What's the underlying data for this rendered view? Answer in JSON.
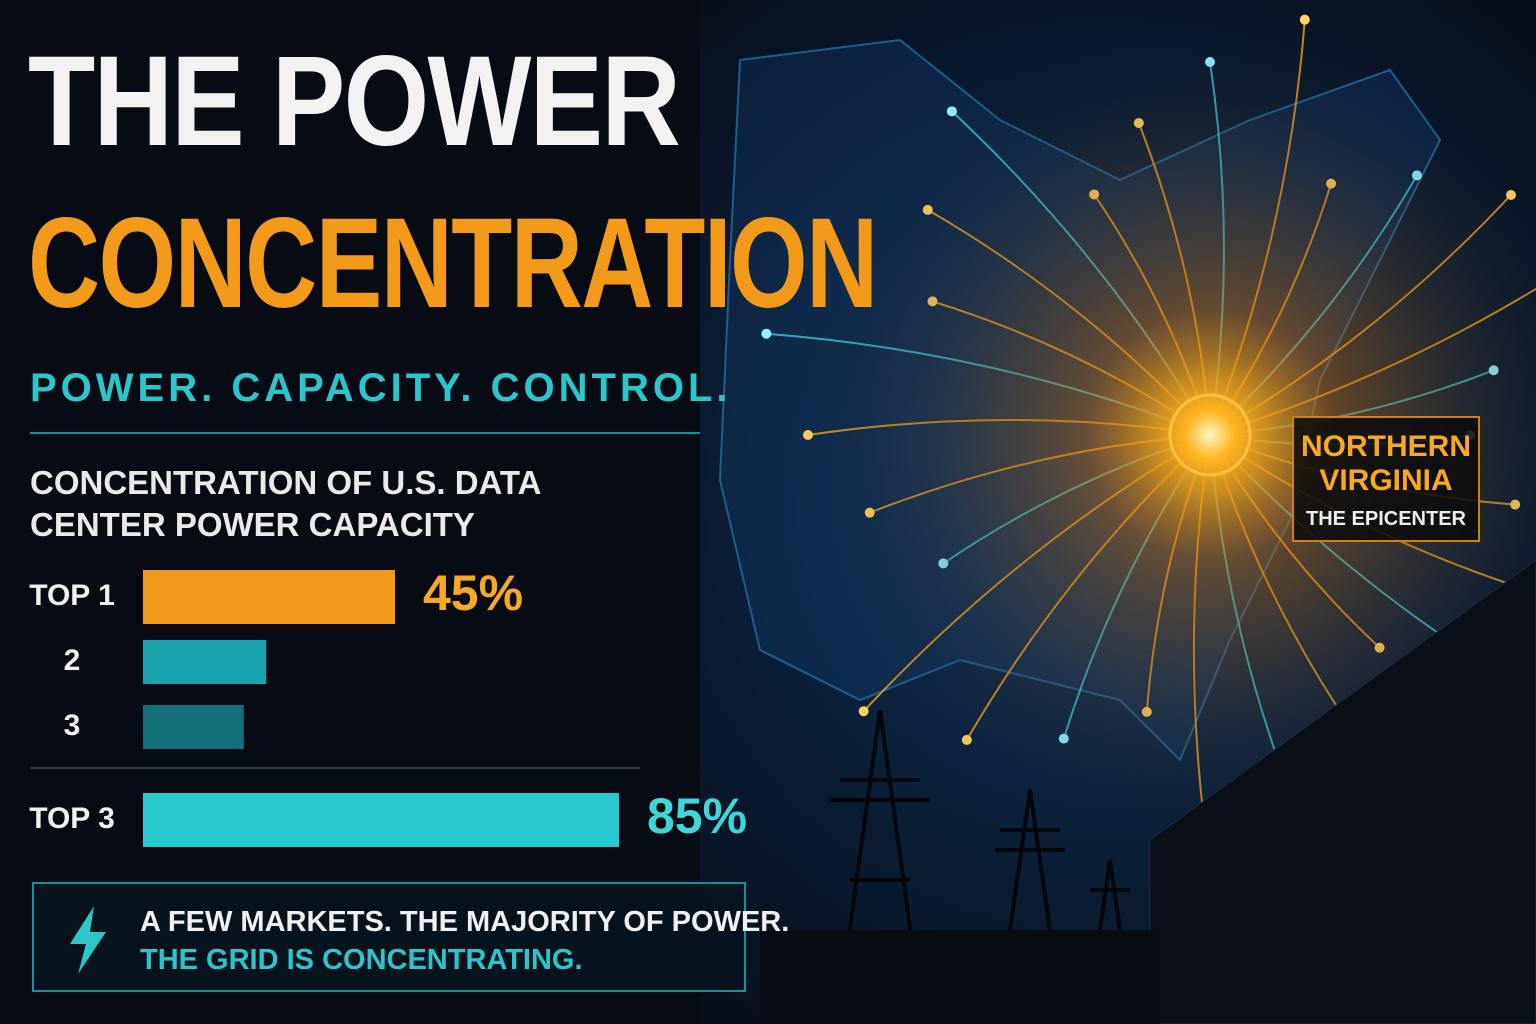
{
  "header": {
    "title_line1": "THE POWER",
    "title_line2": "CONCENTRATION",
    "tagline": "POWER. CAPACITY. CONTROL."
  },
  "chart_data": {
    "type": "bar",
    "orientation": "horizontal",
    "title": "CONCENTRATION OF U.S. DATA CENTER POWER CAPACITY",
    "categories": [
      "TOP 1",
      "2",
      "3",
      "TOP 3"
    ],
    "values": [
      45,
      22,
      18,
      85
    ],
    "value_labels": [
      "45%",
      null,
      null,
      "85%"
    ],
    "colors": [
      "#f39a1a",
      "#1aa3ad",
      "#136f7a",
      "#27c9cf"
    ],
    "label_colors": [
      "#f7a824",
      null,
      null,
      "#3fd6d8"
    ],
    "xlim": [
      0,
      100
    ]
  },
  "callout": {
    "line1": "A FEW MARKETS. THE MAJORITY OF POWER.",
    "line2": "THE GRID IS CONCENTRATING."
  },
  "map_label": {
    "line1": "NORTHERN",
    "line2": "VIRGINIA",
    "line3": "THE EPICENTER"
  }
}
